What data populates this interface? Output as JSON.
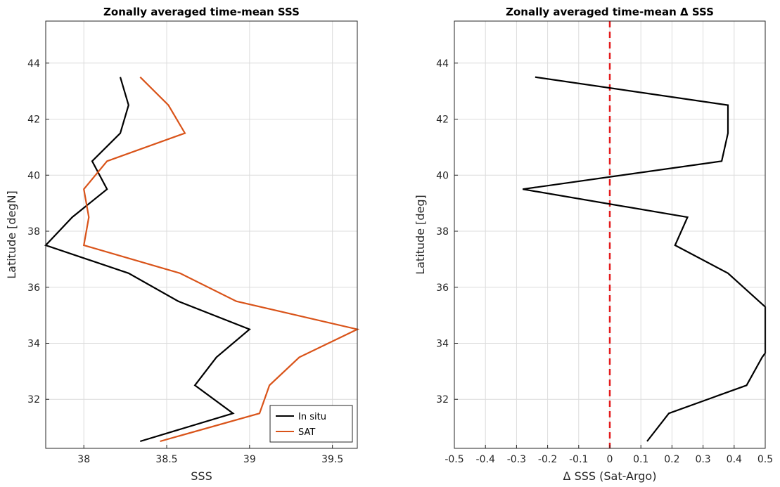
{
  "chart_data": [
    {
      "type": "line",
      "title": "Zonally averaged time-mean SSS",
      "xlabel": "SSS",
      "ylabel": "Latitude [degN]",
      "xlim": [
        37.77,
        39.65
      ],
      "ylim": [
        30.25,
        45.5
      ],
      "xticks": [
        38,
        38.5,
        39,
        39.5
      ],
      "xtick_labels": [
        "38",
        "38.5",
        "39",
        "39.5"
      ],
      "yticks": [
        32,
        34,
        36,
        38,
        40,
        42,
        44
      ],
      "ytick_labels": [
        "32",
        "34",
        "36",
        "38",
        "40",
        "42",
        "44"
      ],
      "grid": true,
      "legend_position": "bottom-right",
      "series": [
        {
          "name": "In situ",
          "color": "#000000",
          "x": [
            38.22,
            38.27,
            38.22,
            38.05,
            38.14,
            37.93,
            37.77,
            38.27,
            38.57,
            39.0,
            38.8,
            38.67,
            38.9,
            38.34
          ],
          "y": [
            43.5,
            42.5,
            41.5,
            40.5,
            39.5,
            38.5,
            37.5,
            36.5,
            35.5,
            34.5,
            33.5,
            32.5,
            31.5,
            30.5
          ]
        },
        {
          "name": "SAT",
          "color": "#d95319",
          "x": [
            38.34,
            38.51,
            38.61,
            38.14,
            38.0,
            38.03,
            38.0,
            38.58,
            38.92,
            39.65,
            39.3,
            39.12,
            39.06,
            38.46
          ],
          "y": [
            43.5,
            42.5,
            41.5,
            40.5,
            39.5,
            38.5,
            37.5,
            36.5,
            35.5,
            34.5,
            33.5,
            32.5,
            31.5,
            30.5
          ]
        }
      ]
    },
    {
      "type": "line",
      "title": "Zonally averaged time-mean Δ SSS",
      "xlabel": "Δ SSS (Sat-Argo)",
      "ylabel": "Latitude [deg]",
      "xlim": [
        -0.5,
        0.5
      ],
      "ylim": [
        30.25,
        45.5
      ],
      "xticks": [
        -0.5,
        -0.4,
        -0.3,
        -0.2,
        -0.1,
        0,
        0.1,
        0.2,
        0.3,
        0.4,
        0.5
      ],
      "xtick_labels": [
        "-0.5",
        "-0.4",
        "-0.3",
        "-0.2",
        "-0.1",
        "0",
        "0.1",
        "0.2",
        "0.3",
        "0.4",
        "0.5"
      ],
      "yticks": [
        32,
        34,
        36,
        38,
        40,
        42,
        44
      ],
      "ytick_labels": [
        "32",
        "34",
        "36",
        "38",
        "40",
        "42",
        "44"
      ],
      "grid": true,
      "reference_line": {
        "x": 0,
        "color": "#e41a1c",
        "style": "dashed"
      },
      "series": [
        {
          "color": "#000000",
          "x": [
            -0.24,
            0.38,
            0.38,
            0.36,
            -0.28,
            0.25,
            0.21,
            0.38,
            0.5,
            0.5,
            0.49,
            0.44,
            0.19,
            0.12
          ],
          "y": [
            43.5,
            42.5,
            41.5,
            40.5,
            39.5,
            38.5,
            37.5,
            36.5,
            35.3,
            33.65,
            33.5,
            32.5,
            31.5,
            30.5
          ]
        }
      ]
    }
  ]
}
